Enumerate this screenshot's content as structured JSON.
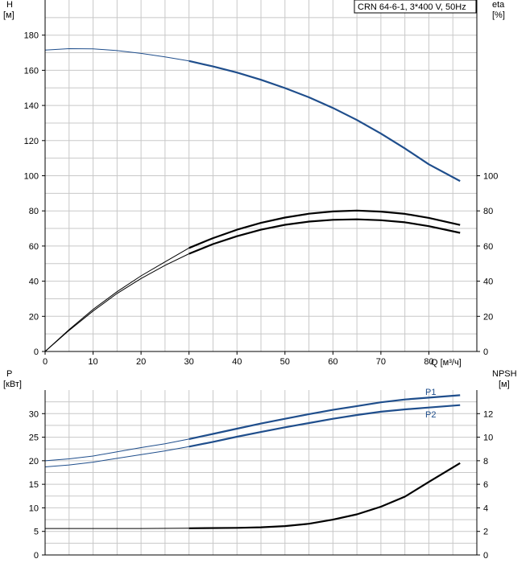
{
  "legend_box": {
    "text": "CRN 64-6-1, 3*400 V, 50Hz"
  },
  "chart_data": [
    {
      "type": "line",
      "panel": "head-efficiency",
      "x_label": "Q [м³/ч]",
      "y_left_label": [
        "H",
        "[м]"
      ],
      "y_right_label": [
        "eta",
        "[%]"
      ],
      "x_range": [
        0,
        90
      ],
      "y_left_range": [
        0,
        200
      ],
      "y_right_range": [
        0,
        200
      ],
      "x_ticks": [
        0,
        10,
        20,
        30,
        40,
        50,
        60,
        70,
        80
      ],
      "y_left_ticks": [
        0,
        20,
        40,
        60,
        80,
        100,
        120,
        140,
        160,
        180
      ],
      "y_right_ticks": [
        0,
        20,
        40,
        60,
        80,
        100
      ],
      "grid": true,
      "series": [
        {
          "role": "head",
          "color": "#1f4e8c",
          "axis": "left",
          "operating_range_start": 30,
          "points": [
            [
              0,
              171.5
            ],
            [
              5,
              172.3
            ],
            [
              10,
              172.2
            ],
            [
              15,
              171.2
            ],
            [
              20,
              169.6
            ],
            [
              25,
              167.6
            ],
            [
              30,
              165.3
            ],
            [
              35,
              162.2
            ],
            [
              40,
              158.7
            ],
            [
              45,
              154.6
            ],
            [
              50,
              149.9
            ],
            [
              55,
              144.6
            ],
            [
              60,
              138.6
            ],
            [
              65,
              131.7
            ],
            [
              70,
              124.0
            ],
            [
              75,
              115.5
            ],
            [
              80,
              106.5
            ],
            [
              86.5,
              97
            ]
          ]
        },
        {
          "role": "eta-1",
          "color": "#000000",
          "axis": "right",
          "operating_range_start": 30,
          "points": [
            [
              0,
              0
            ],
            [
              5,
              12.5
            ],
            [
              10,
              24
            ],
            [
              15,
              34
            ],
            [
              20,
              43
            ],
            [
              25,
              51
            ],
            [
              30,
              58.9
            ],
            [
              35,
              64.5
            ],
            [
              40,
              69.3
            ],
            [
              45,
              73.2
            ],
            [
              50,
              76.2
            ],
            [
              55,
              78.4
            ],
            [
              60,
              79.7
            ],
            [
              65,
              80.2
            ],
            [
              70,
              79.6
            ],
            [
              75,
              78.3
            ],
            [
              80,
              76.0
            ],
            [
              86.5,
              72
            ]
          ]
        },
        {
          "role": "eta-2",
          "color": "#000000",
          "axis": "right",
          "operating_range_start": 30,
          "points": [
            [
              0,
              0
            ],
            [
              5,
              12
            ],
            [
              10,
              23
            ],
            [
              15,
              33
            ],
            [
              20,
              41.5
            ],
            [
              25,
              49
            ],
            [
              30,
              55.6
            ],
            [
              35,
              61.1
            ],
            [
              40,
              65.6
            ],
            [
              45,
              69.3
            ],
            [
              50,
              72.1
            ],
            [
              55,
              73.9
            ],
            [
              60,
              74.9
            ],
            [
              65,
              75.2
            ],
            [
              70,
              74.7
            ],
            [
              75,
              73.5
            ],
            [
              80,
              71.3
            ],
            [
              86.5,
              67.5
            ]
          ]
        }
      ]
    },
    {
      "type": "line",
      "panel": "power-npsh",
      "y_left_label": [
        "P",
        "[кВт]"
      ],
      "y_right_label": [
        "NPSH",
        "[м]"
      ],
      "x_range": [
        0,
        90
      ],
      "y_left_range": [
        0,
        35
      ],
      "y_right_range": [
        0,
        14
      ],
      "y_left_ticks": [
        0,
        5,
        10,
        15,
        20,
        25,
        30
      ],
      "y_right_ticks": [
        0,
        2,
        4,
        6,
        8,
        10,
        12
      ],
      "grid": true,
      "series": [
        {
          "name": "P1",
          "color": "#1f4e8c",
          "axis": "left",
          "operating_range_start": 30,
          "points": [
            [
              0,
              20
            ],
            [
              5,
              20.4
            ],
            [
              10,
              21
            ],
            [
              15,
              21.9
            ],
            [
              20,
              22.8
            ],
            [
              25,
              23.6
            ],
            [
              30,
              24.6
            ],
            [
              35,
              25.7
            ],
            [
              40,
              26.8
            ],
            [
              45,
              27.9
            ],
            [
              50,
              28.9
            ],
            [
              55,
              29.9
            ],
            [
              60,
              30.8
            ],
            [
              65,
              31.6
            ],
            [
              70,
              32.4
            ],
            [
              75,
              33.0
            ],
            [
              80,
              33.4
            ],
            [
              86.5,
              33.9
            ]
          ]
        },
        {
          "name": "P2",
          "color": "#1f4e8c",
          "axis": "left",
          "operating_range_start": 30,
          "points": [
            [
              0,
              18.7
            ],
            [
              5,
              19.1
            ],
            [
              10,
              19.7
            ],
            [
              15,
              20.5
            ],
            [
              20,
              21.3
            ],
            [
              25,
              22.1
            ],
            [
              30,
              23.0
            ],
            [
              35,
              24.0
            ],
            [
              40,
              25.1
            ],
            [
              45,
              26.1
            ],
            [
              50,
              27.1
            ],
            [
              55,
              28.0
            ],
            [
              60,
              28.9
            ],
            [
              65,
              29.7
            ],
            [
              70,
              30.4
            ],
            [
              75,
              30.9
            ],
            [
              80,
              31.3
            ],
            [
              86.5,
              31.8
            ]
          ]
        },
        {
          "role": "npsh",
          "color": "#000000",
          "axis": "right",
          "operating_range_start": 30,
          "points": [
            [
              0,
              2.25
            ],
            [
              10,
              2.25
            ],
            [
              20,
              2.25
            ],
            [
              30,
              2.27
            ],
            [
              40,
              2.3
            ],
            [
              45,
              2.35
            ],
            [
              50,
              2.45
            ],
            [
              55,
              2.65
            ],
            [
              60,
              3.0
            ],
            [
              65,
              3.45
            ],
            [
              70,
              4.1
            ],
            [
              75,
              4.95
            ],
            [
              80,
              6.2
            ],
            [
              86.5,
              7.8
            ]
          ]
        }
      ]
    }
  ]
}
